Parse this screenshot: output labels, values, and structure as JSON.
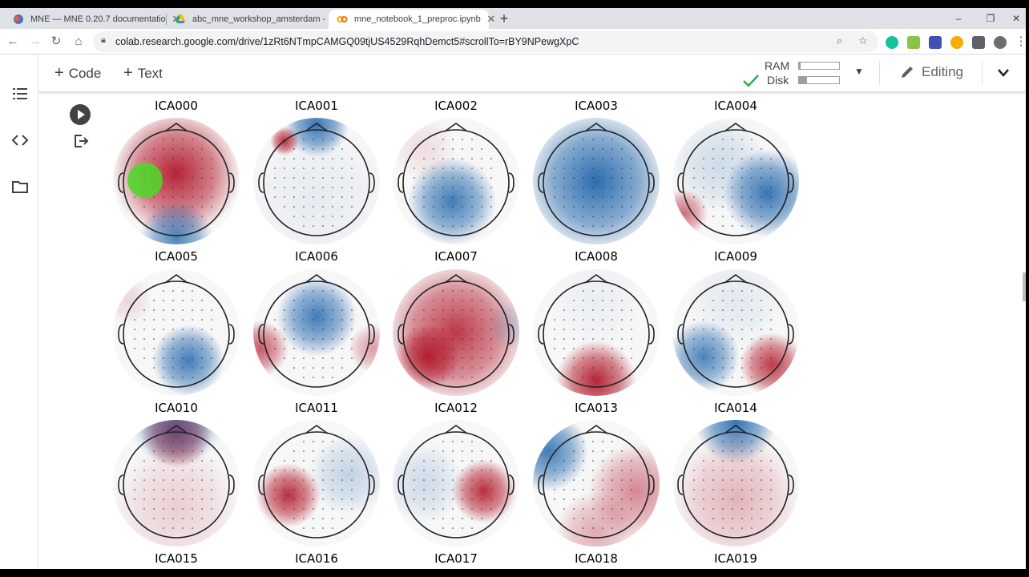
{
  "browser": {
    "tabs": [
      {
        "title": "MNE — MNE 0.20.7 documentatio",
        "icon": "mne-favicon"
      },
      {
        "title": "abc_mne_workshop_amsterdam -",
        "icon": "google-drive-favicon"
      },
      {
        "title": "mne_notebook_1_preproc.ipynb",
        "icon": "colab-favicon"
      }
    ],
    "url": "colab.research.google.com/drive/1zRt6NTmpCAMGQ09tjUS4529RqhDemct5#scrollTo=rBY9NPewgXpC"
  },
  "colab": {
    "add_code_label": "Code",
    "add_text_label": "Text",
    "ram_label": "RAM",
    "disk_label": "Disk",
    "ram_usage": 0.04,
    "disk_usage": 0.2,
    "editing_label": "Editing",
    "connected_color": "#34a853"
  },
  "topomaps": [
    {
      "label": "ICA000"
    },
    {
      "label": "ICA001"
    },
    {
      "label": "ICA002"
    },
    {
      "label": "ICA003"
    },
    {
      "label": "ICA004"
    },
    {
      "label": "ICA005"
    },
    {
      "label": "ICA006"
    },
    {
      "label": "ICA007"
    },
    {
      "label": "ICA008"
    },
    {
      "label": "ICA009"
    },
    {
      "label": "ICA010"
    },
    {
      "label": "ICA011"
    },
    {
      "label": "ICA012"
    },
    {
      "label": "ICA013"
    },
    {
      "label": "ICA014"
    },
    {
      "label": "ICA015"
    },
    {
      "label": "ICA016"
    },
    {
      "label": "ICA017"
    },
    {
      "label": "ICA018"
    },
    {
      "label": "ICA019"
    }
  ],
  "colors": {
    "red": "#b2182b",
    "blue": "#2166ac",
    "neutral": "#f7f7f7"
  }
}
